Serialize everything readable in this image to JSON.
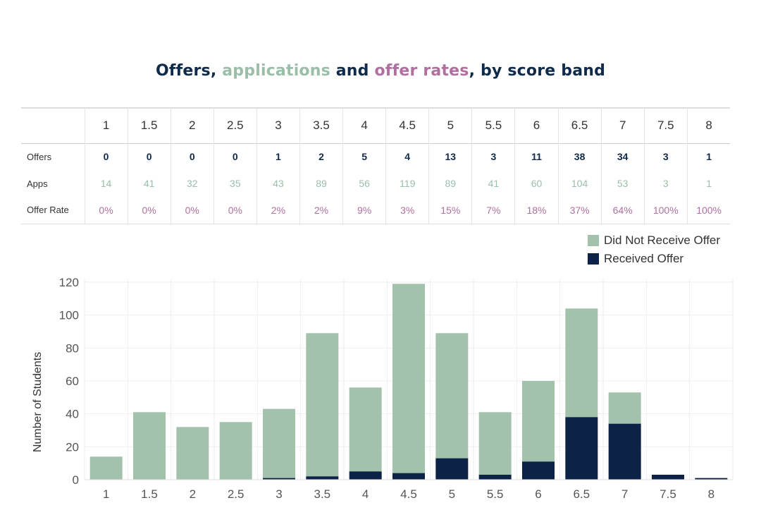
{
  "title": {
    "part1": "Offers, ",
    "part2": "applications",
    "part3": " and ",
    "part4": "offer rates",
    "part5": ", by score band"
  },
  "table": {
    "row_labels": {
      "offers": "Offers",
      "apps": "Apps",
      "rate": "Offer Rate"
    },
    "bands": [
      "1",
      "1.5",
      "2",
      "2.5",
      "3",
      "3.5",
      "4",
      "4.5",
      "5",
      "5.5",
      "6",
      "6.5",
      "7",
      "7.5",
      "8"
    ],
    "offers": [
      "0",
      "0",
      "0",
      "0",
      "1",
      "2",
      "5",
      "4",
      "13",
      "3",
      "11",
      "38",
      "34",
      "3",
      "1"
    ],
    "apps": [
      "14",
      "41",
      "32",
      "35",
      "43",
      "89",
      "56",
      "119",
      "89",
      "41",
      "60",
      "104",
      "53",
      "3",
      "1"
    ],
    "offer_rate": [
      "0%",
      "0%",
      "0%",
      "0%",
      "2%",
      "2%",
      "9%",
      "3%",
      "15%",
      "7%",
      "18%",
      "37%",
      "64%",
      "100%",
      "100%"
    ]
  },
  "legend": {
    "not_received": "Did Not Receive Offer",
    "received": "Received Offer"
  },
  "colors": {
    "title_dark": "#0f2a4a",
    "apps_green": "#9bbea9",
    "rate_purple": "#b06fa0",
    "not_received": "#a3c2ac",
    "received": "#0c2347"
  },
  "chart_data": {
    "type": "bar",
    "stacked": true,
    "categories": [
      "1",
      "1.5",
      "2",
      "2.5",
      "3",
      "3.5",
      "4",
      "4.5",
      "5",
      "5.5",
      "6",
      "6.5",
      "7",
      "7.5",
      "8"
    ],
    "series": [
      {
        "name": "Received Offer",
        "values": [
          0,
          0,
          0,
          0,
          1,
          2,
          5,
          4,
          13,
          3,
          11,
          38,
          34,
          3,
          1
        ]
      },
      {
        "name": "Did Not Receive Offer",
        "values": [
          14,
          41,
          32,
          35,
          42,
          87,
          51,
          115,
          76,
          38,
          49,
          66,
          19,
          0,
          0
        ]
      }
    ],
    "title": "",
    "xlabel": "",
    "ylabel": "Number of Students",
    "yticks": [
      0,
      20,
      40,
      60,
      80,
      100,
      120
    ],
    "ylim": [
      0,
      120
    ],
    "grid": true,
    "legend_position": "top-right"
  }
}
